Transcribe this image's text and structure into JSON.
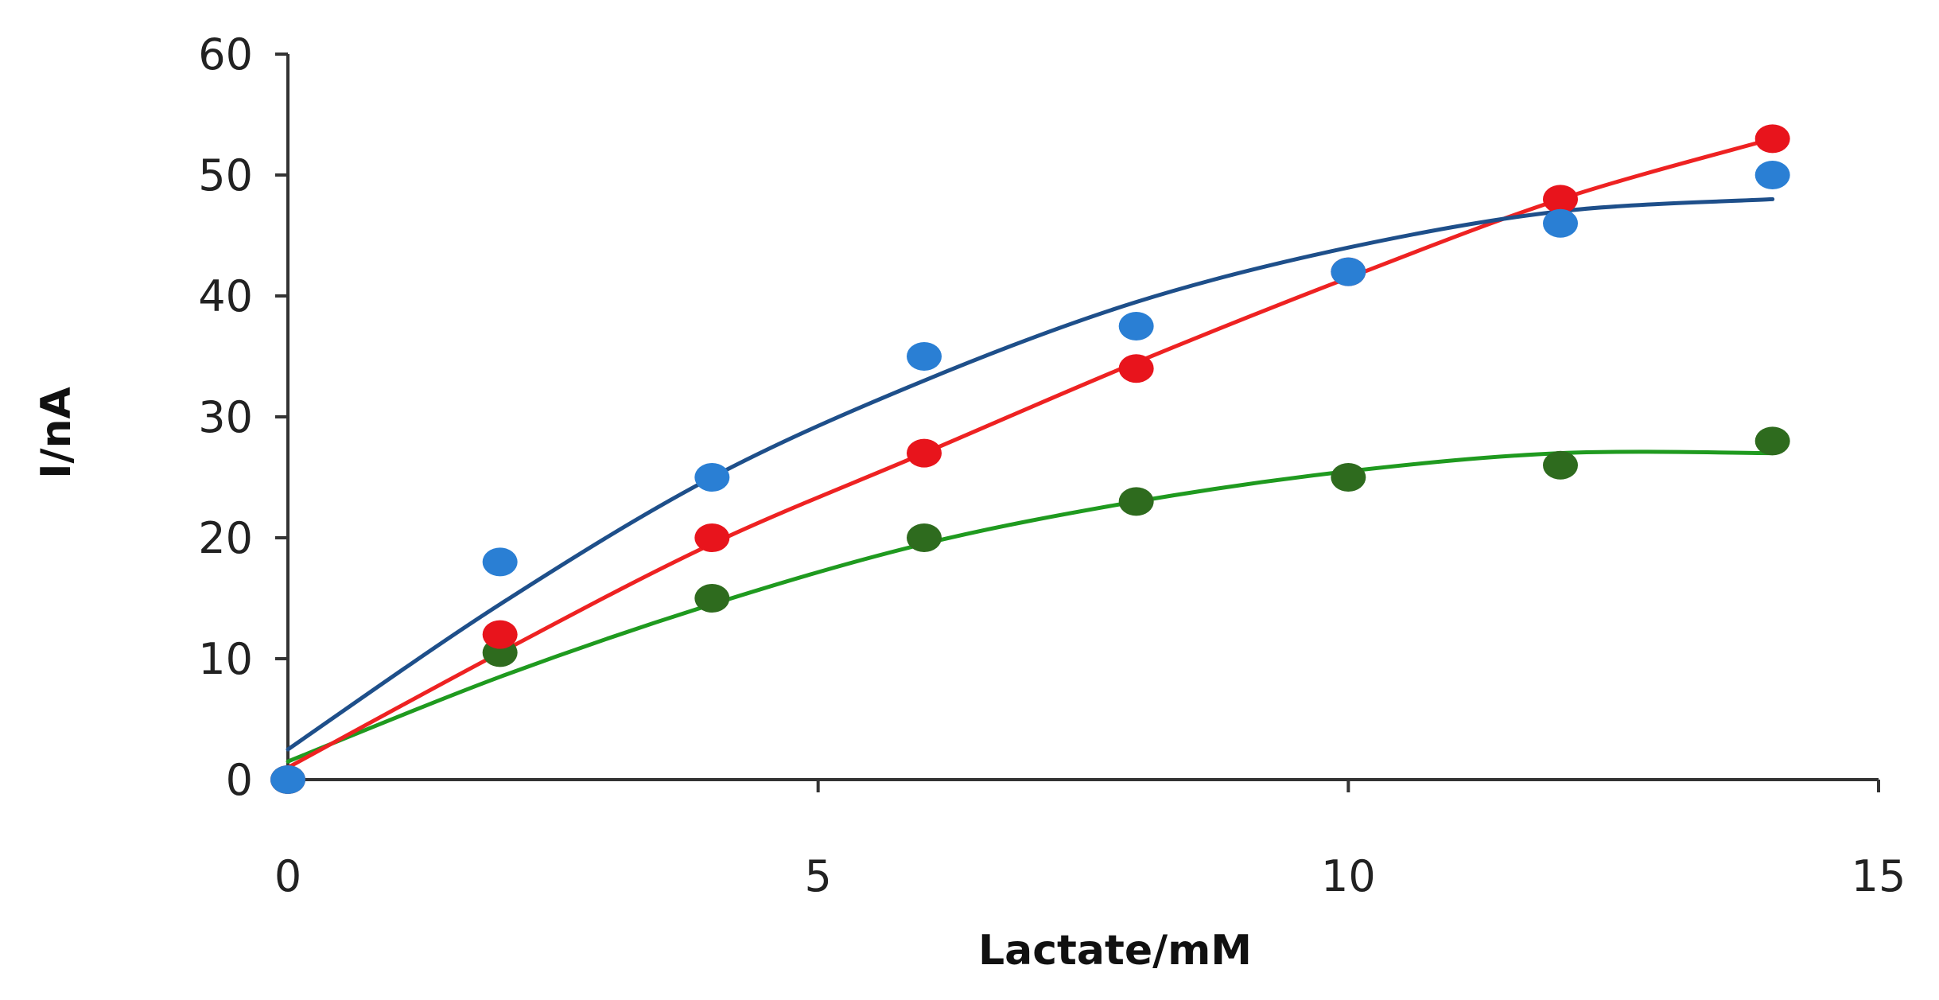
{
  "chart_data": {
    "type": "scatter",
    "title": "",
    "xlabel": "Lactate/mM",
    "ylabel": "I/nA",
    "xlim": [
      0,
      15
    ],
    "ylim": [
      0,
      60
    ],
    "xticks": [
      0,
      5,
      10,
      15
    ],
    "yticks": [
      0,
      10,
      20,
      30,
      40,
      50,
      60
    ],
    "grid": false,
    "legend": "none",
    "series": [
      {
        "name": "green",
        "color": "#2e6b1e",
        "line_color": "#1f9a1f",
        "points": [
          [
            0,
            0
          ],
          [
            2,
            10.5
          ],
          [
            4,
            15
          ],
          [
            6,
            20
          ],
          [
            8,
            23
          ],
          [
            10,
            25
          ],
          [
            12,
            26
          ],
          [
            14,
            28
          ]
        ],
        "fit": [
          [
            0,
            1.5
          ],
          [
            2,
            8.5
          ],
          [
            4,
            14.5
          ],
          [
            6,
            19.5
          ],
          [
            8,
            23
          ],
          [
            10,
            25.5
          ],
          [
            12,
            27
          ],
          [
            14,
            27
          ]
        ]
      },
      {
        "name": "red",
        "color": "#e8141c",
        "line_color": "#ee2222",
        "points": [
          [
            0,
            0
          ],
          [
            2,
            12
          ],
          [
            4,
            20
          ],
          [
            6,
            27
          ],
          [
            8,
            34
          ],
          [
            10,
            42
          ],
          [
            12,
            48
          ],
          [
            14,
            53
          ]
        ],
        "fit": [
          [
            0,
            1
          ],
          [
            2,
            10.5
          ],
          [
            4,
            19.5
          ],
          [
            6,
            27
          ],
          [
            8,
            34.5
          ],
          [
            10,
            41.5
          ],
          [
            12,
            48
          ],
          [
            14,
            53
          ]
        ]
      },
      {
        "name": "blue",
        "color": "#2a7fd4",
        "line_color": "#1e4f8a",
        "points": [
          [
            0,
            0
          ],
          [
            2,
            18
          ],
          [
            4,
            25
          ],
          [
            6,
            35
          ],
          [
            8,
            37.5
          ],
          [
            10,
            42
          ],
          [
            12,
            46
          ],
          [
            14,
            50
          ]
        ],
        "fit": [
          [
            0,
            2.5
          ],
          [
            2,
            14.5
          ],
          [
            4,
            25
          ],
          [
            6,
            33
          ],
          [
            8,
            39.5
          ],
          [
            10,
            44
          ],
          [
            12,
            47
          ],
          [
            14,
            48
          ]
        ]
      }
    ]
  }
}
